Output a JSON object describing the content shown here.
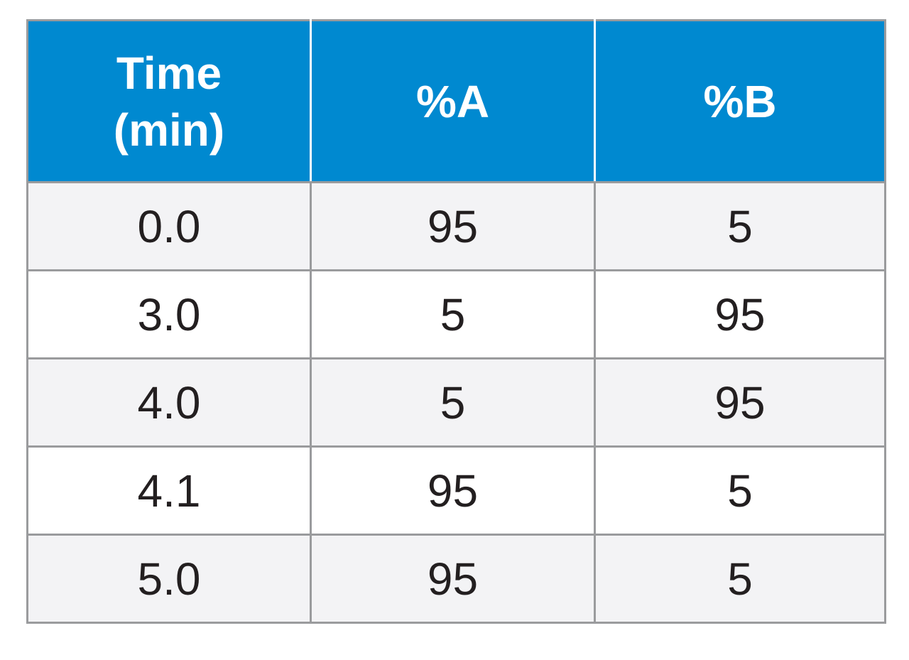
{
  "table": {
    "header": {
      "time_line1": "Time",
      "time_line2": "(min)",
      "a": "%A",
      "b": "%B"
    },
    "rows": [
      {
        "time": "0.0",
        "a": "95",
        "b": "5"
      },
      {
        "time": "3.0",
        "a": "5",
        "b": "95"
      },
      {
        "time": "4.0",
        "a": "5",
        "b": "95"
      },
      {
        "time": "4.1",
        "a": "95",
        "b": "5"
      },
      {
        "time": "5.0",
        "a": "95",
        "b": "5"
      }
    ]
  },
  "colors": {
    "header_bg": "#0089d0",
    "header_text": "#ffffff",
    "border": "#9a9b9d",
    "row_shaded": "#f3f3f5",
    "row_plain": "#ffffff",
    "cell_text": "#231f20"
  }
}
